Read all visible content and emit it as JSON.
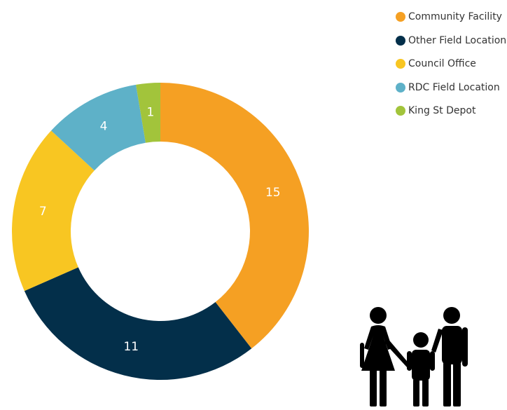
{
  "chart_data": {
    "type": "pie",
    "title": "",
    "legend_position": "top-right",
    "categories": [
      "Community Facility",
      "Other Field Location",
      "Council Office",
      "RDC Field Location",
      "King St Depot"
    ],
    "values": [
      15,
      11,
      7,
      4,
      1
    ],
    "colors": [
      "#f5a023",
      "#032f4a",
      "#f8c622",
      "#5eb1c8",
      "#a2c43b"
    ],
    "donut": true
  },
  "decoration": {
    "icon": "family-icon"
  }
}
